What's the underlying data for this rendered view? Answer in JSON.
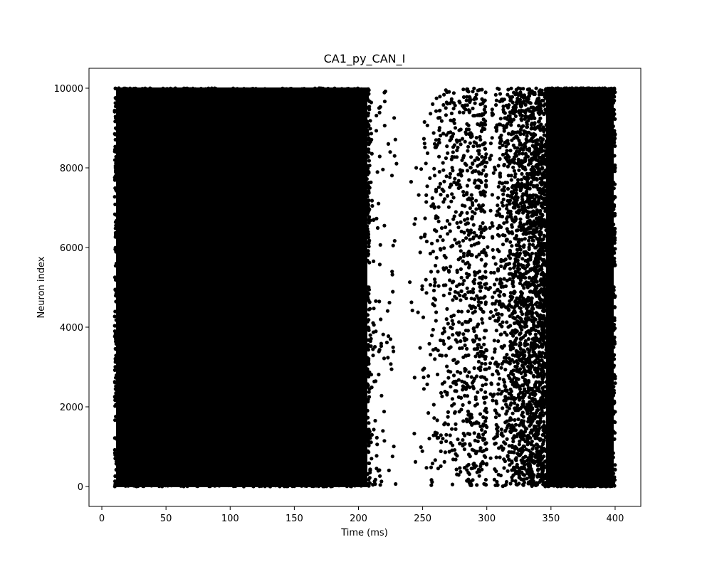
{
  "chart_data": {
    "type": "scatter",
    "title": "CA1_py_CAN_I",
    "xlabel": "Time (ms)",
    "ylabel": "Neuron index",
    "xlim": [
      -10,
      420
    ],
    "ylim": [
      -500,
      10500
    ],
    "xticks": [
      0,
      50,
      100,
      150,
      200,
      250,
      300,
      350,
      400
    ],
    "yticks": [
      0,
      2000,
      4000,
      6000,
      8000,
      10000
    ],
    "grid": false,
    "marker_color": "#000000",
    "series": [
      {
        "regions": [
          {
            "x_range": [
              10,
              208
            ],
            "y_range": [
              0,
              10000
            ],
            "density": "dense"
          },
          {
            "x_range": [
              208,
              230
            ],
            "y_range": [
              0,
              10000
            ],
            "density": "sparse"
          },
          {
            "x_range": [
              240,
              300
            ],
            "y_range": [
              0,
              10000
            ],
            "density": "sparse"
          },
          {
            "x_range": [
              300,
              345
            ],
            "y_range": [
              0,
              10000
            ],
            "density": "medium"
          },
          {
            "x_range": [
              345,
              400
            ],
            "y_range": [
              0,
              10000
            ],
            "density": "dense"
          }
        ],
        "points": [
          [
            227,
            6050
          ],
          [
            221,
            9920
          ],
          [
            241,
            7650
          ],
          [
            240,
            5130
          ],
          [
            242,
            4420
          ],
          [
            248,
            3480
          ],
          [
            253,
            4860
          ],
          [
            217,
            40
          ],
          [
            213,
            60
          ],
          [
            225,
            3700
          ],
          [
            220,
            1880
          ],
          [
            218,
            2280
          ],
          [
            253,
            470
          ],
          [
            251,
            2450
          ],
          [
            245,
            8000
          ]
        ]
      }
    ]
  }
}
